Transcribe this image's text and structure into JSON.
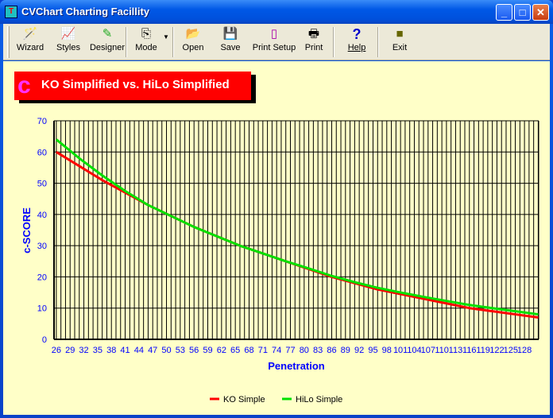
{
  "window": {
    "title": "CVChart Charting Facillity"
  },
  "toolbar": [
    {
      "label": "Wizard",
      "icon": "wand-icon"
    },
    {
      "label": "Styles",
      "icon": "chart-styles-icon"
    },
    {
      "label": "Designer",
      "icon": "pen-icon"
    },
    {
      "label": "Mode",
      "icon": "copy-icon"
    },
    {
      "label": "Open",
      "icon": "folder-open-icon"
    },
    {
      "label": "Save",
      "icon": "floppy-icon"
    },
    {
      "label": "Print Setup",
      "icon": "page-icon"
    },
    {
      "label": "Print",
      "icon": "printer-icon"
    },
    {
      "label": "Help",
      "icon": "question-icon"
    },
    {
      "label": "Exit",
      "icon": "exit-icon"
    }
  ],
  "chart_data": {
    "type": "line",
    "title": "KO Simplified vs. HiLo Simplified",
    "xlabel": "Penetration",
    "ylabel": "c-SCORE",
    "ylim": [
      0,
      70
    ],
    "yticks": [
      0,
      10,
      20,
      30,
      40,
      50,
      60,
      70
    ],
    "xticks": [
      26,
      29,
      32,
      35,
      38,
      41,
      44,
      47,
      50,
      53,
      56,
      59,
      62,
      65,
      68,
      71,
      74,
      77,
      80,
      83,
      86,
      89,
      92,
      95,
      98,
      101,
      104,
      107,
      110,
      113,
      116,
      119,
      122,
      125,
      128
    ],
    "grid": true,
    "legend": "bottom",
    "x": [
      26,
      31,
      36,
      41,
      46,
      51,
      56,
      61,
      66,
      71,
      76,
      81,
      86,
      91,
      96,
      101,
      106,
      111,
      116,
      121,
      126,
      131
    ],
    "series": [
      {
        "name": "KO Simple",
        "color": "#ff0000",
        "values": [
          60,
          55.5,
          51,
          47,
          43,
          39.5,
          36,
          33,
          30,
          27.5,
          25,
          22.5,
          20,
          18,
          16,
          14.5,
          13,
          11.5,
          10,
          9,
          8,
          7
        ]
      },
      {
        "name": "HiLo Simple",
        "color": "#00e000",
        "values": [
          64,
          58,
          52.5,
          47.5,
          43,
          39.5,
          36,
          33,
          30,
          27.5,
          25,
          22.7,
          20.3,
          18.3,
          16.5,
          15,
          13.6,
          12.3,
          11,
          10,
          9,
          8
        ]
      }
    ]
  }
}
